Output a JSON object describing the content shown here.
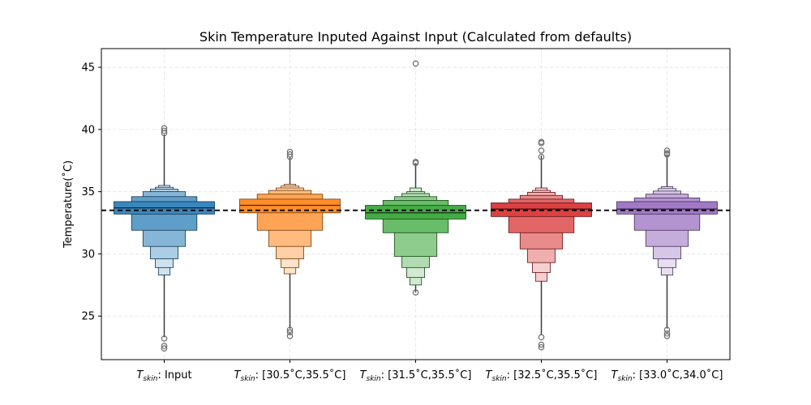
{
  "chart_data": {
    "type": "boxenplot",
    "title": "Skin Temperature Inputed Against Input (Calculated from defaults)",
    "ylabel": "Temperature(˚C)",
    "xlabel": "",
    "ylim": [
      21.5,
      46.5
    ],
    "yticks": [
      25,
      30,
      35,
      40,
      45
    ],
    "grid": true,
    "reference_line": {
      "y": 33.5,
      "style": "dashed",
      "color": "#000000"
    },
    "categories": [
      {
        "main": "T",
        "sub": "skin",
        "rest": ": Input"
      },
      {
        "main": "T",
        "sub": "skin",
        "rest": ": [30.5˚C,35.5˚C]"
      },
      {
        "main": "T",
        "sub": "skin",
        "rest": ": [31.5˚C,35.5˚C]"
      },
      {
        "main": "T",
        "sub": "skin",
        "rest": ": [32.5˚C,35.5˚C]"
      },
      {
        "main": "T",
        "sub": "skin",
        "rest": ": [33.0˚C,34.0˚C]"
      }
    ],
    "series": [
      {
        "color": "#1f77b4",
        "median": 33.7,
        "levels": [
          [
            33.2,
            34.2
          ],
          [
            31.9,
            34.6
          ],
          [
            30.6,
            35.0
          ],
          [
            29.6,
            35.2
          ],
          [
            28.9,
            35.35
          ],
          [
            28.3,
            35.5
          ]
        ],
        "whisker": [
          23.3,
          39.6
        ],
        "outliers": [
          23.2,
          22.6,
          22.4,
          39.7,
          39.9,
          40.1
        ]
      },
      {
        "color": "#ff7f0e",
        "median": 33.9,
        "levels": [
          [
            33.3,
            34.4
          ],
          [
            31.9,
            34.8
          ],
          [
            30.6,
            35.1
          ],
          [
            29.6,
            35.3
          ],
          [
            28.9,
            35.45
          ],
          [
            28.4,
            35.6
          ]
        ],
        "whisker": [
          24.0,
          37.8
        ],
        "outliers": [
          23.9,
          23.7,
          23.4,
          37.8,
          38.0,
          38.2
        ]
      },
      {
        "color": "#2ca02c",
        "median": 33.3,
        "levels": [
          [
            32.8,
            33.9
          ],
          [
            31.7,
            34.3
          ],
          [
            29.8,
            34.6
          ],
          [
            28.9,
            34.85
          ],
          [
            28.1,
            35.0
          ],
          [
            27.5,
            35.3
          ]
        ],
        "whisker": [
          26.9,
          37.3
        ],
        "outliers": [
          26.9,
          37.3,
          37.4,
          45.3
        ]
      },
      {
        "color": "#d62728",
        "median": 33.6,
        "levels": [
          [
            33.0,
            34.1
          ],
          [
            31.7,
            34.4
          ],
          [
            30.4,
            34.7
          ],
          [
            29.3,
            34.95
          ],
          [
            28.5,
            35.1
          ],
          [
            27.8,
            35.3
          ]
        ],
        "whisker": [
          23.5,
          37.9
        ],
        "outliers": [
          23.3,
          22.7,
          22.5,
          37.8,
          38.3,
          38.9,
          39.0
        ]
      },
      {
        "color": "#9467bd",
        "median": 33.6,
        "levels": [
          [
            33.2,
            34.2
          ],
          [
            31.9,
            34.5
          ],
          [
            30.6,
            34.8
          ],
          [
            29.6,
            35.05
          ],
          [
            28.9,
            35.25
          ],
          [
            28.3,
            35.4
          ]
        ],
        "whisker": [
          24.0,
          38.0
        ],
        "outliers": [
          23.9,
          23.6,
          23.4,
          38.0,
          38.1,
          38.3
        ]
      }
    ]
  }
}
